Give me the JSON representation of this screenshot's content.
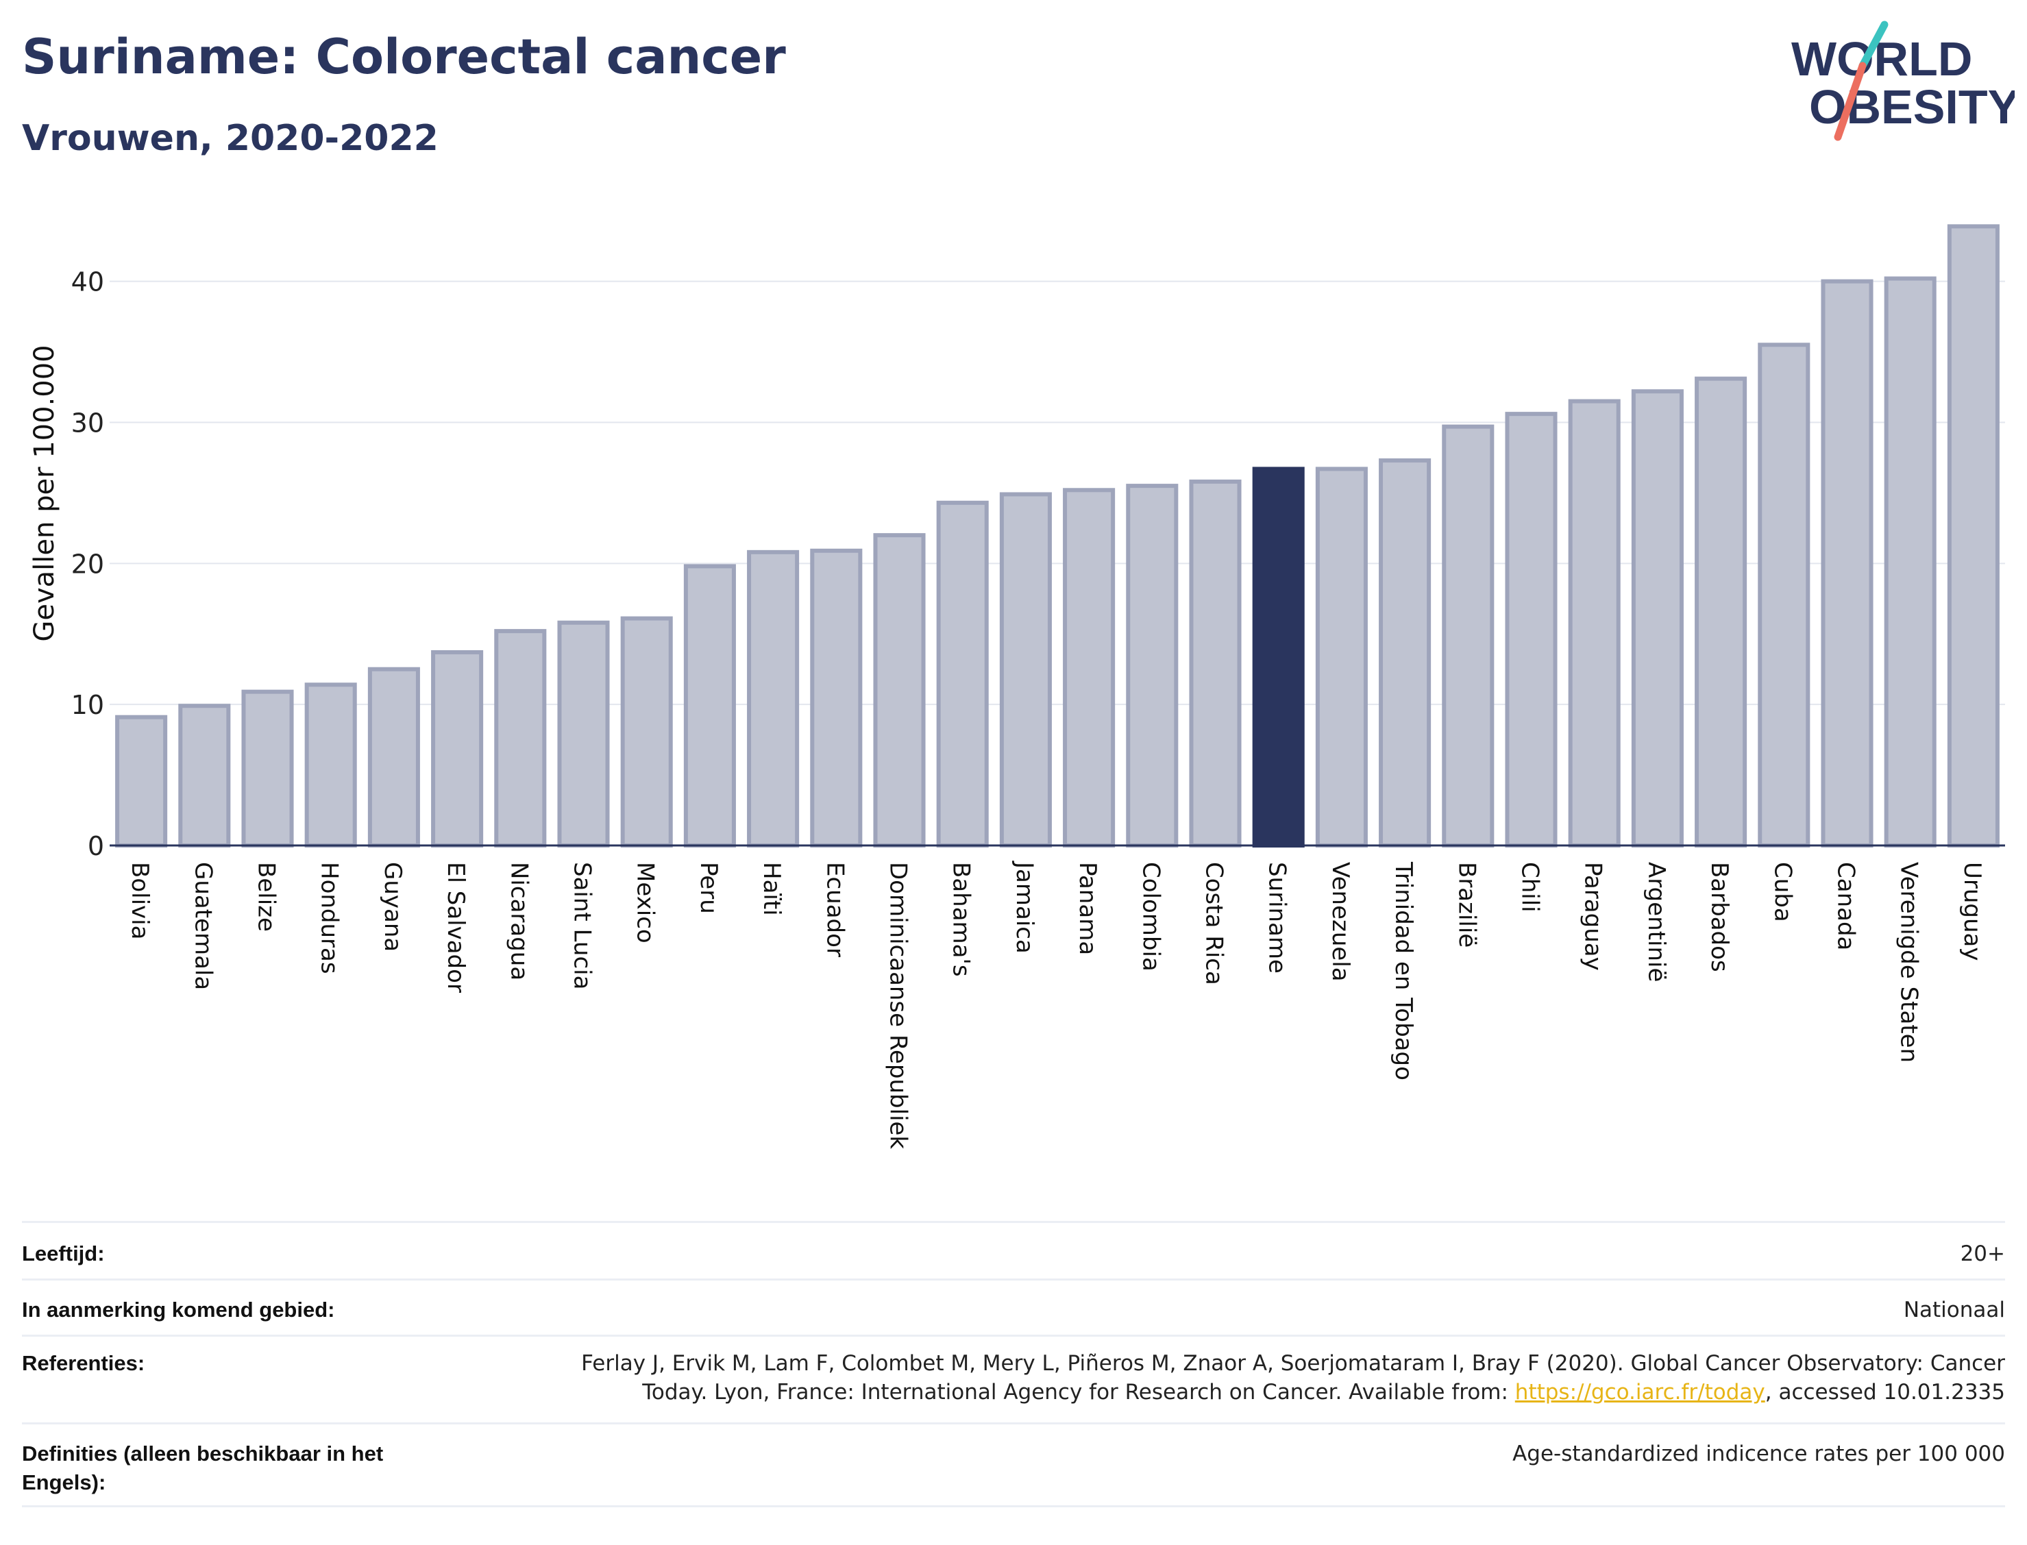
{
  "title": "Suriname: Colorectal cancer",
  "subtitle": "Vrouwen, 2020-2022",
  "logo": {
    "line1": "WORLD",
    "line2": "OBESITY"
  },
  "colors": {
    "highlight": "#2a355e",
    "bar": "#bfc3d1",
    "bar_border": "#9ea4bb",
    "text": "#2a355e",
    "grid": "#e3e6ee",
    "logo_teal": "#3bc3c0",
    "logo_coral": "#ec6e5f"
  },
  "chart_data": {
    "type": "bar",
    "ylabel": "Gevallen per 100.000",
    "ylim": [
      0,
      44.5
    ],
    "yticks": [
      0,
      10,
      20,
      30,
      40
    ],
    "grid": true,
    "highlight": "Suriname",
    "categories": [
      "Bolivia",
      "Guatemala",
      "Belize",
      "Honduras",
      "Guyana",
      "El Salvador",
      "Nicaragua",
      "Saint Lucia",
      "Mexico",
      "Peru",
      "Haïti",
      "Ecuador",
      "Dominicaanse Republiek",
      "Bahama's",
      "Jamaica",
      "Panama",
      "Colombia",
      "Costa Rica",
      "Suriname",
      "Venezuela",
      "Trinidad en Tobago",
      "Brazilië",
      "Chili",
      "Paraguay",
      "Argentinië",
      "Barbados",
      "Cuba",
      "Canada",
      "Verenigde Staten",
      "Uruguay"
    ],
    "values": [
      9.1,
      9.9,
      10.9,
      11.4,
      12.5,
      13.7,
      15.2,
      15.8,
      16.1,
      19.8,
      20.8,
      20.9,
      22.0,
      24.3,
      24.9,
      25.2,
      25.5,
      25.8,
      26.7,
      26.7,
      27.3,
      29.7,
      30.6,
      31.5,
      32.2,
      33.1,
      35.5,
      40.0,
      40.2,
      43.9
    ]
  },
  "meta": {
    "age_label": "Leeftijd:",
    "age_value": "20+",
    "area_label": "In aanmerking komend gebied:",
    "area_value": "Nationaal",
    "ref_label": "Referenties:",
    "ref_text_1": "Ferlay J, Ervik M, Lam F, Colombet M, Mery L, Piñeros M, Znaor A, Soerjomataram I, Bray F (2020). Global Cancer Observatory: Cancer Today. Lyon, France: International Agency for Research on Cancer. Available from: ",
    "ref_link": "https://gco.iarc.fr/today",
    "ref_text_2": ", accessed 10.01.2335",
    "def_label": "Definities (alleen beschikbaar in het Engels):",
    "def_value": "Age-standardized indicence rates per 100 000"
  }
}
